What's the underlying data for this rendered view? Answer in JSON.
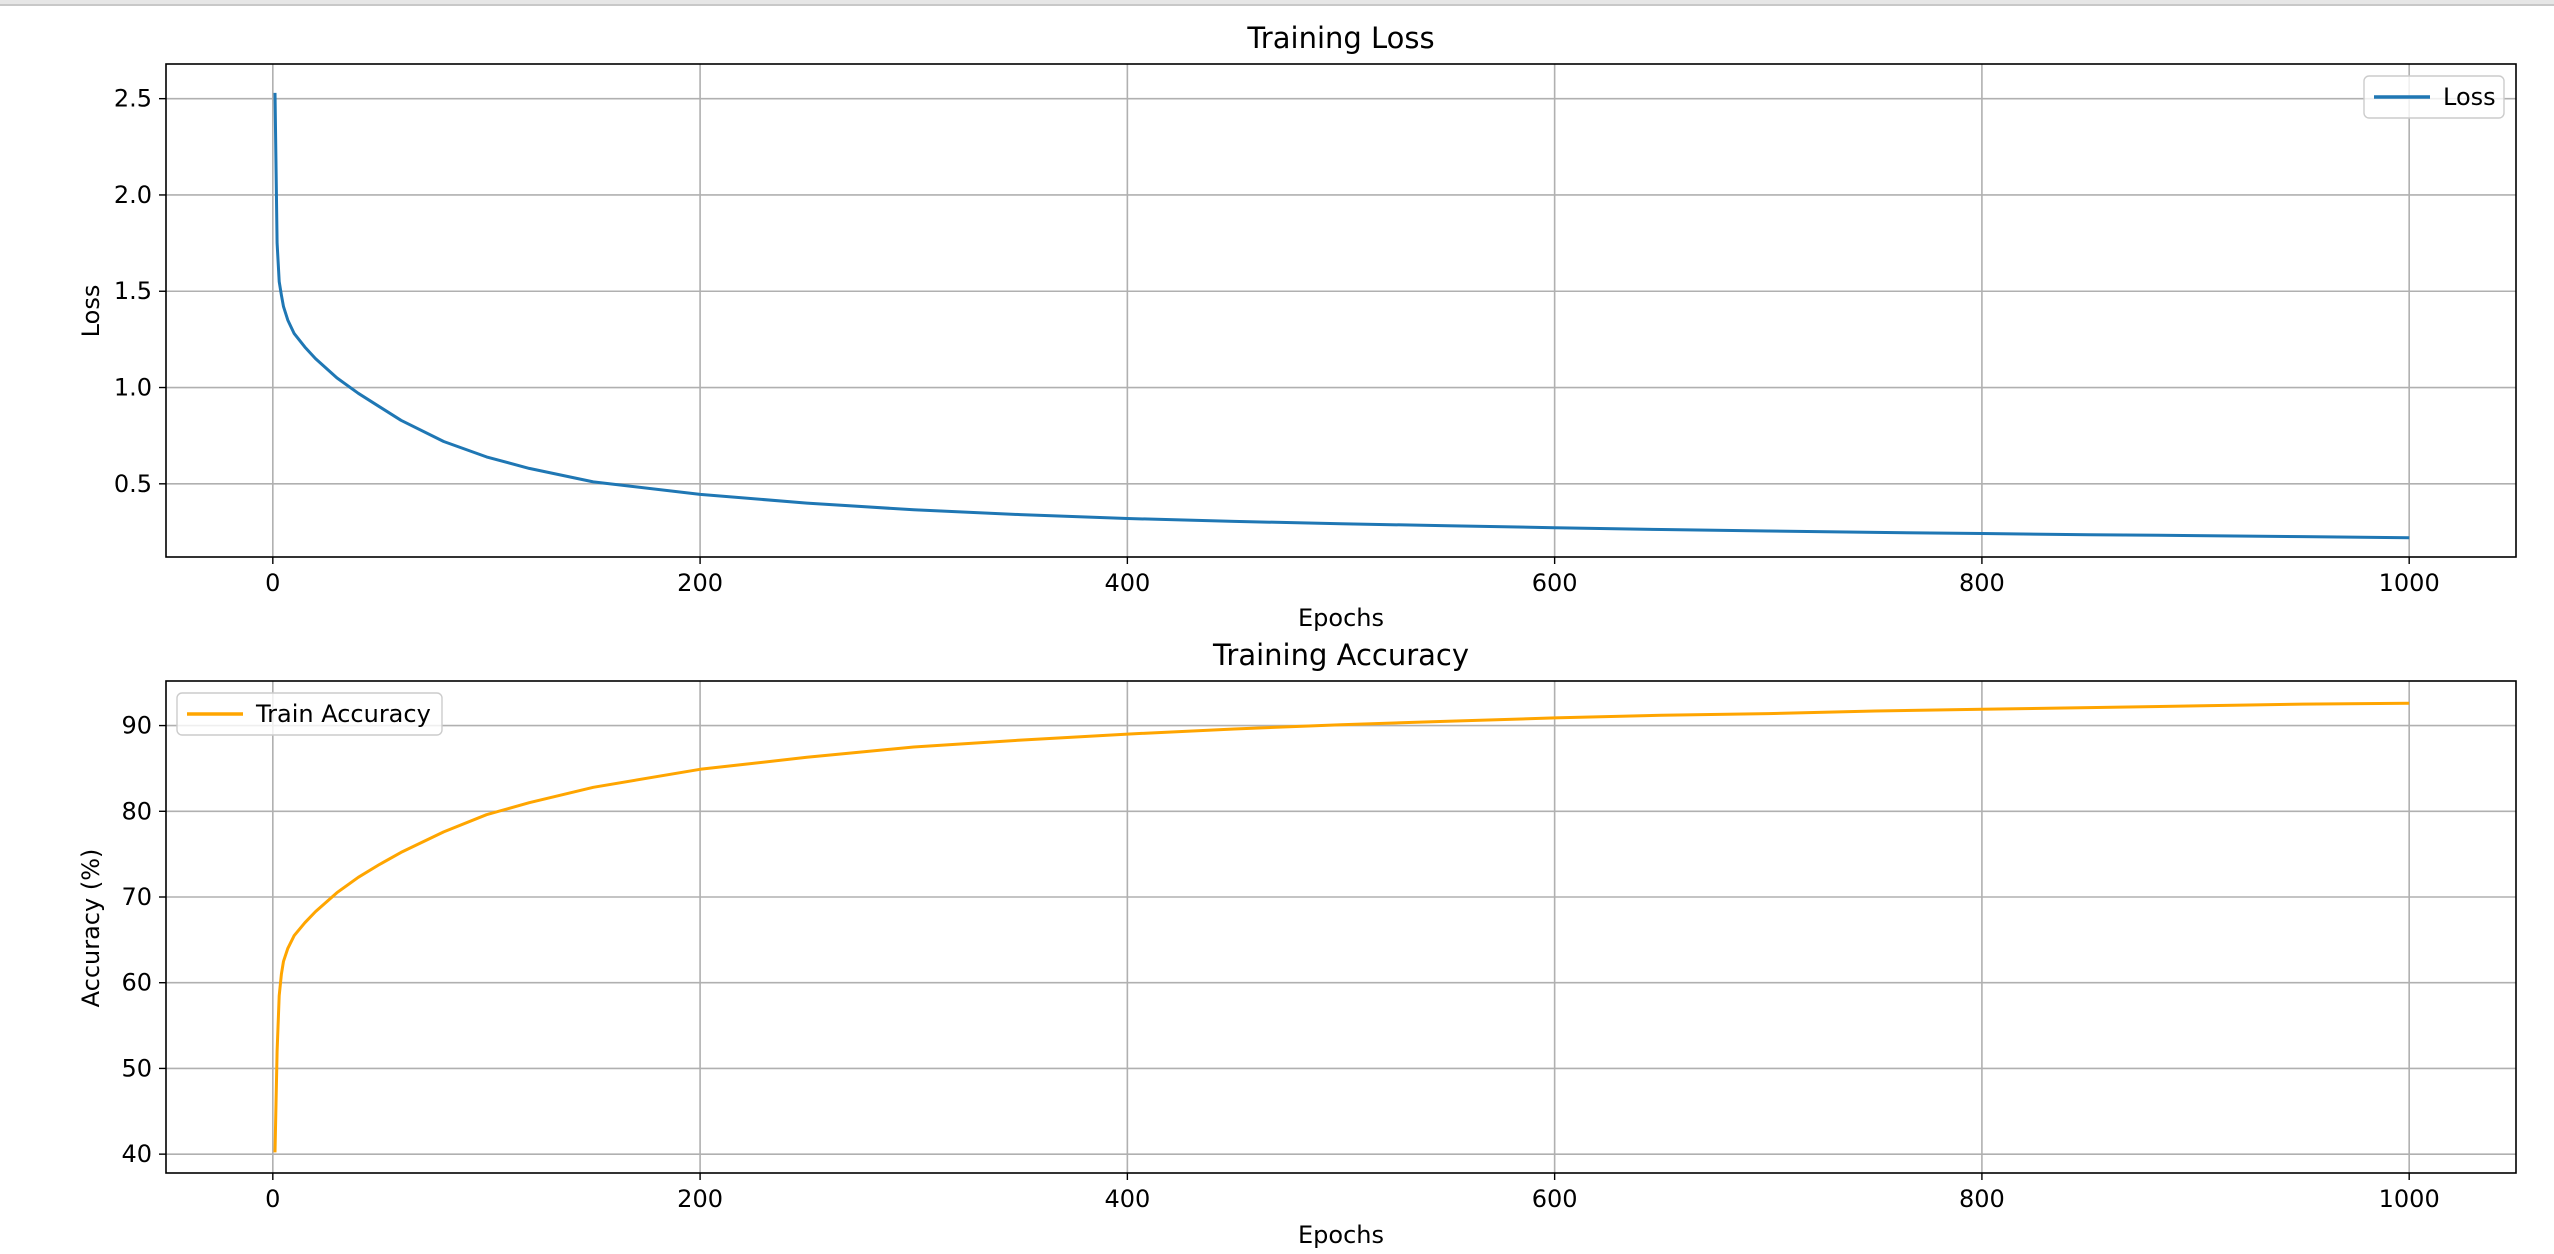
{
  "chart_data": [
    {
      "type": "line",
      "title": "Training Loss",
      "xlabel": "Epochs",
      "ylabel": "Loss",
      "xlim": [
        -50,
        1050
      ],
      "ylim": [
        0.12,
        2.68
      ],
      "xticks": [
        0,
        200,
        400,
        600,
        800,
        1000
      ],
      "yticks": [
        0.5,
        1.0,
        1.5,
        2.0,
        2.5
      ],
      "ytick_labels": [
        "0.5",
        "1.0",
        "1.5",
        "2.0",
        "2.5"
      ],
      "grid": true,
      "legend": "upper right",
      "series": [
        {
          "name": "Loss",
          "color": "#1f77b4",
          "x": [
            1,
            2,
            3,
            4,
            5,
            7,
            10,
            15,
            20,
            30,
            40,
            50,
            60,
            80,
            100,
            120,
            150,
            200,
            250,
            300,
            350,
            400,
            450,
            500,
            550,
            600,
            650,
            700,
            750,
            800,
            850,
            900,
            950,
            1000
          ],
          "y": [
            2.53,
            1.75,
            1.55,
            1.48,
            1.42,
            1.35,
            1.28,
            1.21,
            1.15,
            1.05,
            0.97,
            0.9,
            0.83,
            0.72,
            0.64,
            0.58,
            0.51,
            0.445,
            0.4,
            0.365,
            0.34,
            0.32,
            0.305,
            0.293,
            0.282,
            0.272,
            0.263,
            0.255,
            0.248,
            0.242,
            0.236,
            0.231,
            0.226,
            0.22
          ]
        }
      ]
    },
    {
      "type": "line",
      "title": "Training Accuracy",
      "xlabel": "Epochs",
      "ylabel": "Accuracy (%)",
      "xlim": [
        -50,
        1050
      ],
      "ylim": [
        37.8,
        95.2
      ],
      "xticks": [
        0,
        200,
        400,
        600,
        800,
        1000
      ],
      "yticks": [
        40,
        50,
        60,
        70,
        80,
        90
      ],
      "ytick_labels": [
        "40",
        "50",
        "60",
        "70",
        "80",
        "90"
      ],
      "grid": true,
      "legend": "upper left",
      "series": [
        {
          "name": "Train Accuracy",
          "color": "#ffa500",
          "x": [
            1,
            2,
            3,
            4,
            5,
            7,
            10,
            15,
            20,
            30,
            40,
            50,
            60,
            80,
            100,
            120,
            150,
            200,
            250,
            300,
            350,
            400,
            450,
            500,
            550,
            600,
            650,
            700,
            750,
            800,
            850,
            900,
            950,
            1000
          ],
          "y": [
            40.2,
            52.0,
            58.5,
            61.0,
            62.5,
            64.0,
            65.5,
            67.0,
            68.3,
            70.5,
            72.3,
            73.8,
            75.2,
            77.6,
            79.6,
            81.0,
            82.8,
            84.9,
            86.3,
            87.5,
            88.3,
            89.0,
            89.6,
            90.1,
            90.5,
            90.9,
            91.2,
            91.4,
            91.7,
            91.9,
            92.1,
            92.3,
            92.5,
            92.6
          ]
        }
      ]
    }
  ]
}
